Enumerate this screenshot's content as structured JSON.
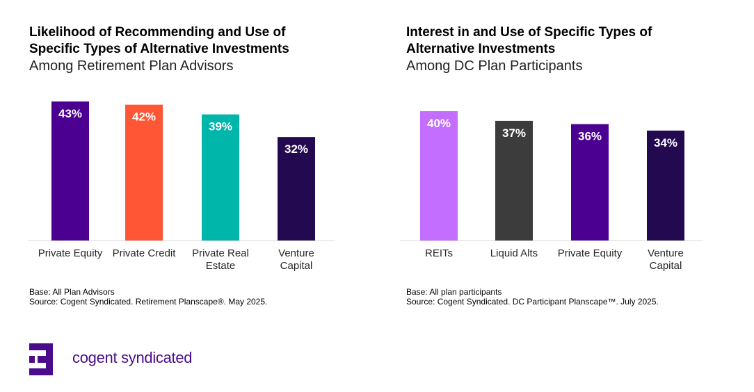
{
  "chart_data": [
    {
      "type": "bar",
      "title": "Likelihood of Recommending and Use of Specific Types of Alternative Investments",
      "subtitle": "Among Retirement Plan Advisors",
      "categories": [
        [
          "Private Equity"
        ],
        [
          "Private Credit"
        ],
        [
          "Private Real",
          "Estate"
        ],
        [
          "Venture",
          "Capital"
        ]
      ],
      "values": [
        43,
        42,
        39,
        32
      ],
      "labels": [
        "43%",
        "42%",
        "39%",
        "32%"
      ],
      "colors": [
        "#4b0092",
        "#ff5636",
        "#00b5aa",
        "#230a50"
      ],
      "ylim": [
        0,
        43
      ],
      "grid": false,
      "base": "Base: All Plan Advisors",
      "source": "Source: Cogent Syndicated. Retirement Planscape®. May 2025."
    },
    {
      "type": "bar",
      "title": "Interest in and Use of Specific Types of Alternative Investments",
      "subtitle": "Among DC Plan Participants",
      "categories": [
        [
          "REITs"
        ],
        [
          "Liquid Alts"
        ],
        [
          "Private Equity"
        ],
        [
          "Venture",
          "Capital"
        ]
      ],
      "values": [
        40,
        37,
        36,
        34
      ],
      "labels": [
        "40%",
        "37%",
        "36%",
        "34%"
      ],
      "colors": [
        "#c36eff",
        "#3c3c3c",
        "#4b0092",
        "#230a50"
      ],
      "ylim": [
        0,
        43
      ],
      "grid": false,
      "base": "Base: All plan participants",
      "source": "Source: Cogent Syndicated. DC Participant Planscape™. July 2025."
    }
  ],
  "logo": {
    "text": "cogent syndicated",
    "color": "#4a0c8c"
  }
}
